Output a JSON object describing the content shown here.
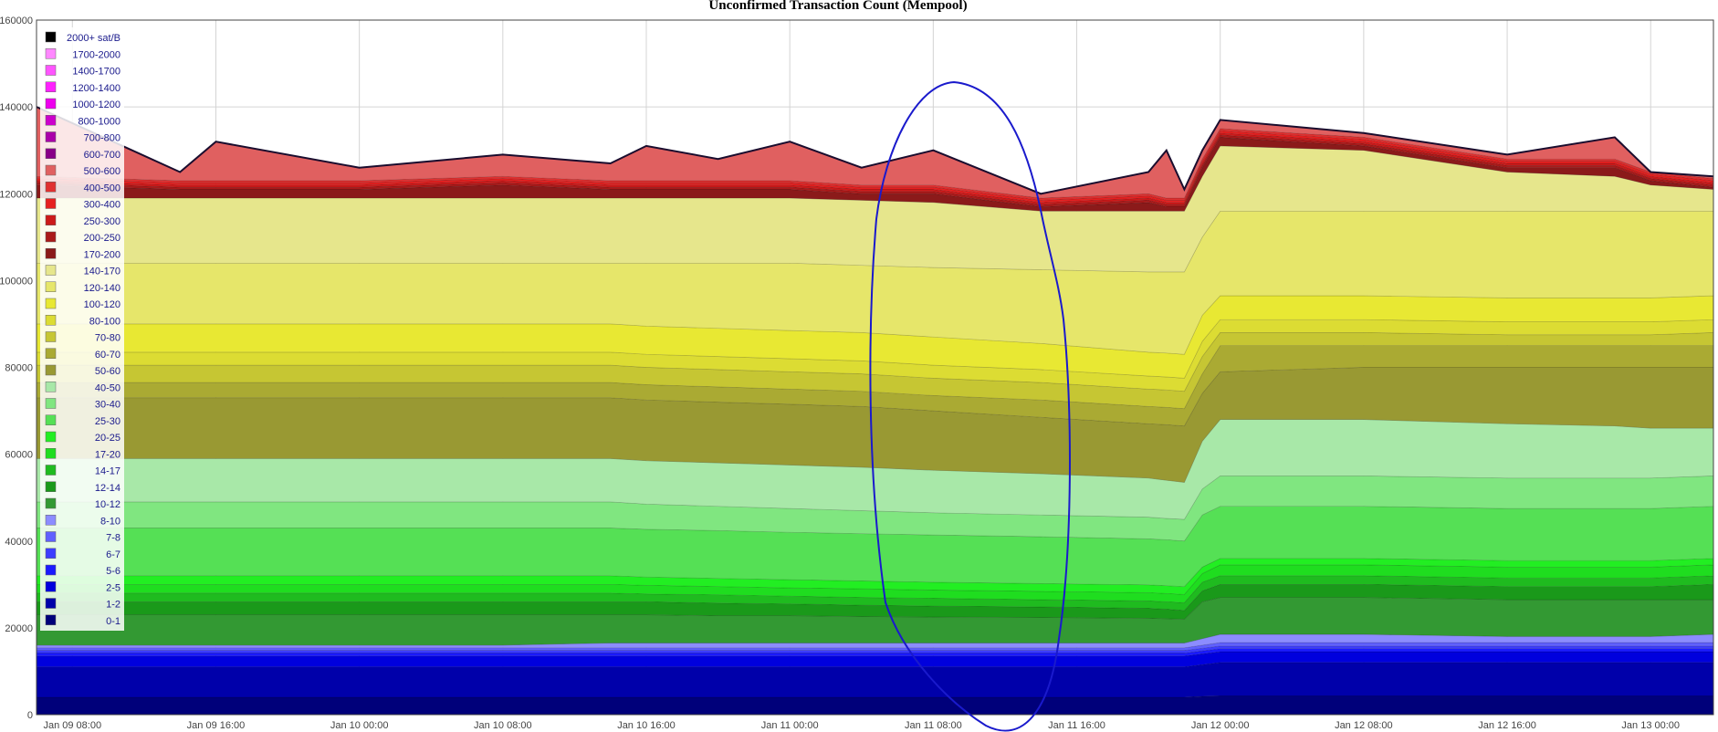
{
  "chart_data": {
    "type": "area",
    "title": "Unconfirmed Transaction Count (Mempool)",
    "xlabel": "",
    "ylabel": "",
    "ylim": [
      0,
      160000
    ],
    "yticks": [
      "0",
      "20000",
      "40000",
      "60000",
      "80000",
      "100000",
      "120000",
      "140000",
      "160000"
    ],
    "xticks": [
      "Jan 09 08:00",
      "Jan 09 16:00",
      "Jan 10 00:00",
      "Jan 10 08:00",
      "Jan 10 16:00",
      "Jan 11 00:00",
      "Jan 11 08:00",
      "Jan 11 16:00",
      "Jan 12 00:00",
      "Jan 12 08:00",
      "Jan 12 16:00",
      "Jan 13 00:00"
    ],
    "x_hours": [
      -2,
      6,
      8,
      16,
      24,
      30,
      32,
      36,
      40,
      44,
      48,
      54,
      60,
      61,
      62,
      63,
      64,
      72,
      80,
      86,
      88,
      91.5
    ],
    "grid": true,
    "legend": "left",
    "annotation": "hand-drawn blue ellipse around Jan 11 08:00–16:00",
    "series": [
      {
        "name": "0-1",
        "color": "#00007a",
        "values": [
          4000,
          4000,
          4000,
          4000,
          4000,
          4000,
          4000,
          4000,
          4000,
          4000,
          4000,
          4000,
          4000,
          4000,
          4000,
          4200,
          4300,
          4300,
          4300,
          4300,
          4300,
          4300
        ]
      },
      {
        "name": "1-2",
        "color": "#0000aa",
        "values": [
          11000,
          11000,
          11000,
          11000,
          11000,
          11000,
          11000,
          11000,
          11000,
          11000,
          11000,
          11000,
          11000,
          11000,
          11000,
          11500,
          12000,
          12000,
          12000,
          12000,
          12000,
          12000
        ]
      },
      {
        "name": "2-5",
        "color": "#0000dd",
        "values": [
          13500,
          13500,
          13500,
          13500,
          13500,
          13500,
          13500,
          13500,
          13500,
          13500,
          13500,
          13500,
          13500,
          13500,
          13500,
          14000,
          14500,
          14500,
          14500,
          14500,
          14500,
          14500
        ]
      },
      {
        "name": "5-6",
        "color": "#1a1aff",
        "values": [
          14200,
          14200,
          14200,
          14200,
          14200,
          14200,
          14200,
          14200,
          14200,
          14200,
          14200,
          14200,
          14200,
          14200,
          14200,
          14700,
          15200,
          15200,
          15200,
          15200,
          15200,
          15200
        ]
      },
      {
        "name": "6-7",
        "color": "#3d3dff",
        "values": [
          14800,
          14800,
          14800,
          14800,
          14800,
          14800,
          14800,
          14800,
          14800,
          14800,
          14800,
          14800,
          14800,
          14800,
          14800,
          15300,
          15800,
          15800,
          15800,
          15800,
          15800,
          15800
        ]
      },
      {
        "name": "7-8",
        "color": "#6060ff",
        "values": [
          15400,
          15400,
          15400,
          15400,
          15400,
          15400,
          15400,
          15400,
          15400,
          15400,
          15400,
          15400,
          15400,
          15400,
          15400,
          16000,
          16600,
          16600,
          16600,
          16600,
          16600,
          16600
        ]
      },
      {
        "name": "8-10",
        "color": "#8c8cff",
        "values": [
          16000,
          16000,
          16000,
          16000,
          16000,
          16500,
          16500,
          16500,
          16500,
          16500,
          16500,
          16500,
          16500,
          16500,
          16500,
          17500,
          18500,
          18500,
          18000,
          18000,
          18000,
          18500
        ]
      },
      {
        "name": "10-12",
        "color": "#339933",
        "values": [
          23000,
          23000,
          23000,
          23000,
          23000,
          23000,
          23000,
          22800,
          22800,
          22600,
          22500,
          22400,
          22200,
          22100,
          22000,
          26000,
          27000,
          27000,
          26500,
          26500,
          26500,
          26500
        ]
      },
      {
        "name": "12-14",
        "color": "#1a991a",
        "values": [
          26000,
          26000,
          26000,
          26000,
          26000,
          26000,
          26000,
          25700,
          25500,
          25200,
          25000,
          24800,
          24500,
          24300,
          24000,
          28500,
          30000,
          30000,
          29500,
          29500,
          29500,
          30000
        ]
      },
      {
        "name": "14-17",
        "color": "#1fbb1f",
        "values": [
          28000,
          28000,
          28000,
          28000,
          28000,
          28000,
          27800,
          27600,
          27300,
          27000,
          26800,
          26500,
          26200,
          26000,
          25800,
          30500,
          32000,
          32000,
          31500,
          31500,
          31500,
          32000
        ]
      },
      {
        "name": "17-20",
        "color": "#1fdd1f",
        "values": [
          30000,
          30000,
          30000,
          30000,
          30000,
          30000,
          29800,
          29500,
          29200,
          29000,
          28700,
          28400,
          28100,
          27900,
          27700,
          32500,
          34500,
          34500,
          34000,
          34000,
          34000,
          34500
        ]
      },
      {
        "name": "20-25",
        "color": "#22ee22",
        "values": [
          32000,
          32000,
          32000,
          32000,
          32000,
          32000,
          31700,
          31400,
          31100,
          30800,
          30500,
          30200,
          29900,
          29700,
          29500,
          34000,
          36000,
          36000,
          35500,
          35500,
          35500,
          36000
        ]
      },
      {
        "name": "25-30",
        "color": "#55e055",
        "values": [
          43000,
          43000,
          43000,
          43000,
          43000,
          43000,
          42700,
          42400,
          42000,
          41700,
          41400,
          41000,
          40500,
          40300,
          40000,
          46000,
          48000,
          48000,
          47500,
          47500,
          47500,
          48000
        ]
      },
      {
        "name": "30-40",
        "color": "#80e680",
        "values": [
          49000,
          49000,
          49000,
          49000,
          49000,
          49000,
          48500,
          48000,
          47500,
          47000,
          46500,
          46000,
          45500,
          45200,
          45000,
          52000,
          55000,
          55000,
          54500,
          54500,
          54500,
          55000
        ]
      },
      {
        "name": "40-50",
        "color": "#a8e8a8",
        "values": [
          59000,
          59000,
          59000,
          59000,
          59000,
          59000,
          58500,
          58000,
          57500,
          57000,
          56300,
          55500,
          54500,
          54000,
          53500,
          63000,
          68000,
          68000,
          67000,
          66500,
          66000,
          66000
        ]
      },
      {
        "name": "50-60",
        "color": "#999933",
        "values": [
          73000,
          73000,
          73000,
          73000,
          73000,
          73000,
          72500,
          72000,
          71500,
          71000,
          70000,
          68500,
          67000,
          66800,
          66500,
          74000,
          79000,
          80000,
          80000,
          80000,
          80000,
          80000
        ]
      },
      {
        "name": "60-70",
        "color": "#aaaa33",
        "values": [
          76500,
          76500,
          76500,
          76500,
          76500,
          76500,
          76000,
          75500,
          75000,
          74500,
          73500,
          72500,
          71000,
          70800,
          70500,
          78500,
          85000,
          85000,
          85000,
          85000,
          85000,
          85000
        ]
      },
      {
        "name": "70-80",
        "color": "#c6c633",
        "values": [
          80500,
          80500,
          80500,
          80500,
          80500,
          80500,
          80000,
          79500,
          79000,
          78500,
          77500,
          76500,
          75000,
          74800,
          74500,
          82500,
          88000,
          88000,
          87500,
          87500,
          87500,
          88000
        ]
      },
      {
        "name": "80-100",
        "color": "#dcdc33",
        "values": [
          83500,
          83500,
          83500,
          83500,
          83500,
          83500,
          83000,
          82500,
          82000,
          81500,
          80500,
          79500,
          78000,
          77800,
          77500,
          86000,
          91000,
          91000,
          90500,
          90500,
          90500,
          91000
        ]
      },
      {
        "name": "100-120",
        "color": "#e8e833",
        "values": [
          90000,
          90000,
          90000,
          90000,
          90000,
          90000,
          89500,
          89000,
          88500,
          88000,
          87000,
          85500,
          83500,
          83300,
          83000,
          92000,
          96500,
          96500,
          96000,
          96000,
          96000,
          96500
        ]
      },
      {
        "name": "120-140",
        "color": "#e6e66a",
        "values": [
          104000,
          104000,
          104000,
          104000,
          104000,
          104000,
          104000,
          104000,
          104000,
          103500,
          103000,
          102500,
          102000,
          102000,
          102000,
          110000,
          116000,
          116000,
          116000,
          116000,
          116000,
          116000
        ]
      },
      {
        "name": "140-170",
        "color": "#e6e68c",
        "values": [
          119000,
          119000,
          119000,
          119000,
          119000,
          119000,
          119000,
          119000,
          119000,
          118500,
          118000,
          116000,
          116000,
          116000,
          116000,
          124000,
          131000,
          130000,
          125000,
          124000,
          122000,
          121000
        ]
      },
      {
        "name": "170-200",
        "color": "#8b1a1a",
        "values": [
          122000,
          121000,
          121000,
          121000,
          122000,
          121000,
          121000,
          121000,
          121000,
          120000,
          120000,
          117000,
          118000,
          117000,
          117000,
          126000,
          133000,
          131000,
          126000,
          126000,
          123000,
          121500
        ]
      },
      {
        "name": "200-250",
        "color": "#aa1a1a",
        "values": [
          122500,
          121500,
          121500,
          121500,
          122500,
          121500,
          121500,
          121500,
          121500,
          120500,
          120500,
          117500,
          118500,
          117500,
          117500,
          126500,
          133500,
          131500,
          126500,
          126500,
          123500,
          122000
        ]
      },
      {
        "name": "250-300",
        "color": "#cc1a1a",
        "values": [
          123000,
          122000,
          122000,
          122000,
          123000,
          122000,
          122000,
          122000,
          122000,
          121000,
          121000,
          118000,
          119000,
          118000,
          118000,
          127000,
          134000,
          132000,
          127000,
          127000,
          124000,
          122500
        ]
      },
      {
        "name": "300-400",
        "color": "#e62020",
        "values": [
          123500,
          122500,
          122500,
          122500,
          123500,
          122500,
          122500,
          122500,
          122500,
          121500,
          121500,
          118500,
          119500,
          118500,
          118500,
          127500,
          134500,
          132500,
          127500,
          127500,
          124500,
          123000
        ]
      },
      {
        "name": "400-500",
        "color": "#e03030",
        "values": [
          124000,
          123000,
          123000,
          123000,
          124000,
          123000,
          123000,
          123000,
          123000,
          122000,
          122000,
          119000,
          120000,
          119000,
          119000,
          128000,
          135000,
          133000,
          128000,
          128000,
          125000,
          123500
        ]
      },
      {
        "name": "500-600",
        "color": "#e06060",
        "values": [
          140000,
          125000,
          132000,
          126000,
          129000,
          127000,
          131000,
          128000,
          132000,
          126000,
          130000,
          120000,
          125000,
          130000,
          121000,
          130000,
          137000,
          134000,
          129000,
          133000,
          125000,
          124000
        ]
      },
      {
        "name": "600-700",
        "color": "#880088",
        "values": [
          140000,
          125000,
          132000,
          126000,
          129000,
          127000,
          131000,
          128000,
          132000,
          126000,
          130000,
          120000,
          125000,
          130000,
          121000,
          130000,
          137000,
          134000,
          129000,
          133000,
          125000,
          124000
        ]
      },
      {
        "name": "700-800",
        "color": "#aa00aa",
        "values": [
          140000,
          125000,
          132000,
          126000,
          129000,
          127000,
          131000,
          128000,
          132000,
          126000,
          130000,
          120000,
          125000,
          130000,
          121000,
          130000,
          137000,
          134000,
          129000,
          133000,
          125000,
          124000
        ]
      },
      {
        "name": "800-1000",
        "color": "#cc00cc",
        "values": [
          140000,
          125000,
          132000,
          126000,
          129000,
          127000,
          131000,
          128000,
          132000,
          126000,
          130000,
          120000,
          125000,
          130000,
          121000,
          130000,
          137000,
          134000,
          129000,
          133000,
          125000,
          124000
        ]
      },
      {
        "name": "1000-1200",
        "color": "#ee00ee",
        "values": [
          140000,
          125000,
          132000,
          126000,
          129000,
          127000,
          131000,
          128000,
          132000,
          126000,
          130000,
          120000,
          125000,
          130000,
          121000,
          130000,
          137000,
          134000,
          129000,
          133000,
          125000,
          124000
        ]
      },
      {
        "name": "1200-1400",
        "color": "#ff22ff",
        "values": [
          140000,
          125000,
          132000,
          126000,
          129000,
          127000,
          131000,
          128000,
          132000,
          126000,
          130000,
          120000,
          125000,
          130000,
          121000,
          130000,
          137000,
          134000,
          129000,
          133000,
          125000,
          124000
        ]
      },
      {
        "name": "1400-1700",
        "color": "#ff55ff",
        "values": [
          140000,
          125000,
          132000,
          126000,
          129000,
          127000,
          131000,
          128000,
          132000,
          126000,
          130000,
          120000,
          125000,
          130000,
          121000,
          130000,
          137000,
          134000,
          129000,
          133000,
          125000,
          124000
        ]
      },
      {
        "name": "1700-2000",
        "color": "#ff88ff",
        "values": [
          140000,
          125000,
          132000,
          126000,
          129000,
          127000,
          131000,
          128000,
          132000,
          126000,
          130000,
          120000,
          125000,
          130000,
          121000,
          130000,
          137000,
          134000,
          129000,
          133000,
          125000,
          124000
        ]
      },
      {
        "name": "2000+ sat/B",
        "color": "#000000",
        "values": [
          140000,
          125000,
          132000,
          126000,
          129000,
          127000,
          131000,
          128000,
          132000,
          126000,
          130000,
          120000,
          125000,
          130000,
          121000,
          130000,
          137000,
          134000,
          129000,
          133000,
          125000,
          124000
        ]
      }
    ]
  }
}
